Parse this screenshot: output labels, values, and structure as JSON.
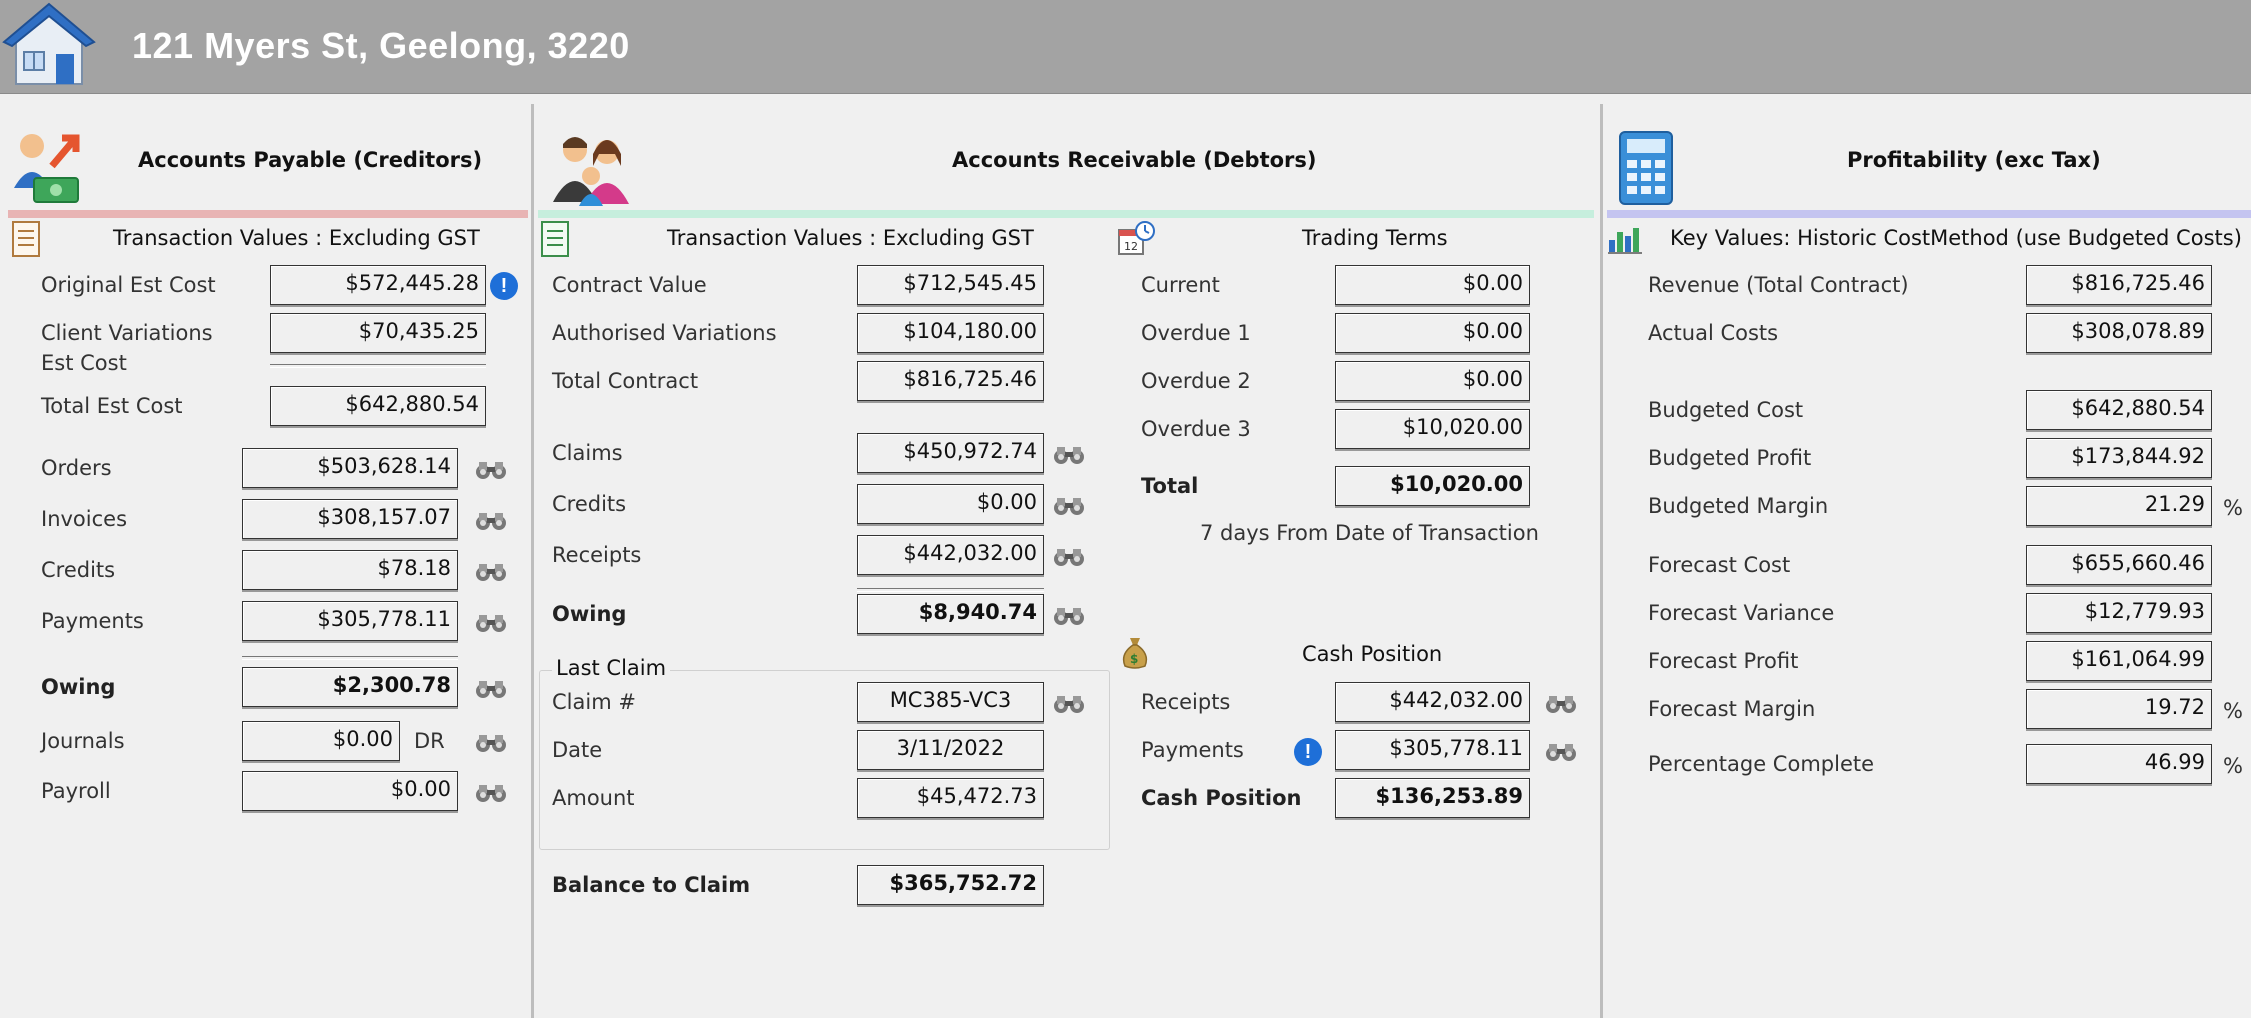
{
  "header": {
    "title": "121 Myers St, Geelong, 3220"
  },
  "creditors": {
    "title": "Accounts Payable (Creditors)",
    "subtitle": "Transaction Values : Excluding GST",
    "original_est_cost": {
      "label": "Original Est Cost",
      "value": "$572,445.28"
    },
    "client_variations": {
      "label": "Client Variations Est Cost",
      "value": "$70,435.25"
    },
    "total_est_cost": {
      "label": "Total Est Cost",
      "value": "$642,880.54"
    },
    "orders": {
      "label": "Orders",
      "value": "$503,628.14"
    },
    "invoices": {
      "label": "Invoices",
      "value": "$308,157.07"
    },
    "credits": {
      "label": "Credits",
      "value": "$78.18"
    },
    "payments": {
      "label": "Payments",
      "value": "$305,778.11"
    },
    "owing": {
      "label": "Owing",
      "value": "$2,300.78"
    },
    "journals": {
      "label": "Journals",
      "value": "$0.00",
      "suffix": "DR"
    },
    "payroll": {
      "label": "Payroll",
      "value": "$0.00"
    }
  },
  "debtors": {
    "title": "Accounts Receivable (Debtors)",
    "subtitle": "Transaction Values : Excluding GST",
    "contract_value": {
      "label": "Contract Value",
      "value": "$712,545.45"
    },
    "authorised_variations": {
      "label": "Authorised Variations",
      "value": "$104,180.00"
    },
    "total_contract": {
      "label": "Total Contract",
      "value": "$816,725.46"
    },
    "claims": {
      "label": "Claims",
      "value": "$450,972.74"
    },
    "credits": {
      "label": "Credits",
      "value": "$0.00"
    },
    "receipts": {
      "label": "Receipts",
      "value": "$442,032.00"
    },
    "owing": {
      "label": "Owing",
      "value": "$8,940.74"
    },
    "last_claim": {
      "legend": "Last Claim",
      "claim_no": {
        "label": "Claim #",
        "value": "MC385-VC3"
      },
      "date": {
        "label": "Date",
        "value": "3/11/2022"
      },
      "amount": {
        "label": "Amount",
        "value": "$45,472.73"
      }
    },
    "balance_to_claim": {
      "label": "Balance to Claim",
      "value": "$365,752.72"
    }
  },
  "trading_terms": {
    "title": "Trading Terms",
    "current": {
      "label": "Current",
      "value": "$0.00"
    },
    "overdue1": {
      "label": "Overdue 1",
      "value": "$0.00"
    },
    "overdue2": {
      "label": "Overdue 2",
      "value": "$0.00"
    },
    "overdue3": {
      "label": "Overdue 3",
      "value": "$10,020.00"
    },
    "total": {
      "label": "Total",
      "value": "$10,020.00"
    },
    "note": "7 days From Date of Transaction"
  },
  "cash_position": {
    "title": "Cash Position",
    "receipts": {
      "label": "Receipts",
      "value": "$442,032.00"
    },
    "payments": {
      "label": "Payments",
      "value": "$305,778.11"
    },
    "cash_position": {
      "label": "Cash Position",
      "value": "$136,253.89"
    }
  },
  "profitability": {
    "title": "Profitability (exc Tax)",
    "subtitle": "Key Values: Historic CostMethod (use Budgeted Costs)",
    "revenue": {
      "label": "Revenue (Total Contract)",
      "value": "$816,725.46"
    },
    "actual_costs": {
      "label": "Actual Costs",
      "value": "$308,078.89"
    },
    "budgeted_cost": {
      "label": "Budgeted Cost",
      "value": "$642,880.54"
    },
    "budgeted_profit": {
      "label": "Budgeted Profit",
      "value": "$173,844.92"
    },
    "budgeted_margin": {
      "label": "Budgeted Margin",
      "value": "21.29",
      "unit": "%"
    },
    "forecast_cost": {
      "label": "Forecast Cost",
      "value": "$655,660.46"
    },
    "forecast_variance": {
      "label": "Forecast Variance",
      "value": "$12,779.93"
    },
    "forecast_profit": {
      "label": "Forecast Profit",
      "value": "$161,064.99"
    },
    "forecast_margin": {
      "label": "Forecast Margin",
      "value": "19.72",
      "unit": "%"
    },
    "percentage_complete": {
      "label": "Percentage Complete",
      "value": "46.99",
      "unit": "%"
    }
  },
  "colors": {
    "header_bg": "#a3a3a3",
    "creditors_strip": "#e8b4b4",
    "debtors_strip": "#c6eedd",
    "profit_strip": "#c4c4f0",
    "info_icon": "#1e6fd8"
  }
}
